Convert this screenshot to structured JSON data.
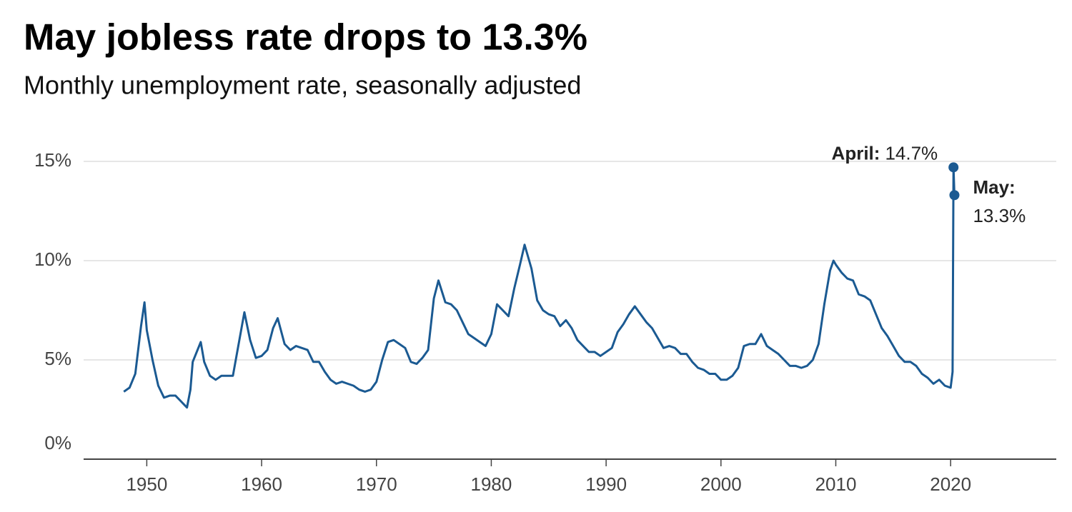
{
  "chart_data": {
    "type": "line",
    "title": "May jobless rate drops to 13.3%",
    "subtitle": "Monthly unemployment rate, seasonally adjusted",
    "color": "#1b5a92",
    "x": [
      1948.0,
      1948.5,
      1949.0,
      1949.5,
      1949.8,
      1950.0,
      1950.5,
      1951.0,
      1951.5,
      1952.0,
      1952.5,
      1953.0,
      1953.5,
      1953.8,
      1954.0,
      1954.7,
      1955.0,
      1955.5,
      1956.0,
      1956.5,
      1957.0,
      1957.5,
      1958.0,
      1958.5,
      1959.0,
      1959.5,
      1960.0,
      1960.5,
      1961.0,
      1961.4,
      1962.0,
      1962.5,
      1963.0,
      1963.5,
      1964.0,
      1964.5,
      1965.0,
      1965.5,
      1966.0,
      1966.5,
      1967.0,
      1967.5,
      1968.0,
      1968.5,
      1969.0,
      1969.5,
      1970.0,
      1970.5,
      1971.0,
      1971.5,
      1972.0,
      1972.5,
      1973.0,
      1973.5,
      1974.0,
      1974.5,
      1975.0,
      1975.4,
      1976.0,
      1976.5,
      1977.0,
      1977.5,
      1978.0,
      1978.5,
      1979.0,
      1979.5,
      1980.0,
      1980.5,
      1981.0,
      1981.5,
      1982.0,
      1982.5,
      1982.9,
      1983.5,
      1984.0,
      1984.5,
      1985.0,
      1985.5,
      1986.0,
      1986.5,
      1987.0,
      1987.5,
      1988.0,
      1988.5,
      1989.0,
      1989.5,
      1990.0,
      1990.5,
      1991.0,
      1991.5,
      1992.0,
      1992.5,
      1993.0,
      1993.5,
      1994.0,
      1994.5,
      1995.0,
      1995.5,
      1996.0,
      1996.5,
      1997.0,
      1997.5,
      1998.0,
      1998.5,
      1999.0,
      1999.5,
      2000.0,
      2000.5,
      2001.0,
      2001.5,
      2002.0,
      2002.5,
      2003.0,
      2003.5,
      2004.0,
      2004.5,
      2005.0,
      2005.5,
      2006.0,
      2006.5,
      2007.0,
      2007.5,
      2008.0,
      2008.5,
      2009.0,
      2009.5,
      2009.8,
      2010.0,
      2010.5,
      2011.0,
      2011.5,
      2012.0,
      2012.5,
      2013.0,
      2013.5,
      2014.0,
      2014.5,
      2015.0,
      2015.5,
      2016.0,
      2016.5,
      2017.0,
      2017.5,
      2018.0,
      2018.5,
      2019.0,
      2019.5,
      2020.0,
      2020.17,
      2020.25,
      2020.33
    ],
    "values": [
      3.4,
      3.6,
      4.3,
      6.7,
      7.9,
      6.5,
      5.0,
      3.7,
      3.1,
      3.2,
      3.2,
      2.9,
      2.6,
      3.5,
      4.9,
      5.9,
      4.9,
      4.2,
      4.0,
      4.2,
      4.2,
      4.2,
      5.8,
      7.4,
      6.0,
      5.1,
      5.2,
      5.5,
      6.6,
      7.1,
      5.8,
      5.5,
      5.7,
      5.6,
      5.5,
      4.9,
      4.9,
      4.4,
      4.0,
      3.8,
      3.9,
      3.8,
      3.7,
      3.5,
      3.4,
      3.5,
      3.9,
      5.0,
      5.9,
      6.0,
      5.8,
      5.6,
      4.9,
      4.8,
      5.1,
      5.5,
      8.1,
      9.0,
      7.9,
      7.8,
      7.5,
      6.9,
      6.3,
      6.1,
      5.9,
      5.7,
      6.3,
      7.8,
      7.5,
      7.2,
      8.6,
      9.8,
      10.8,
      9.6,
      8.0,
      7.5,
      7.3,
      7.2,
      6.7,
      7.0,
      6.6,
      6.0,
      5.7,
      5.4,
      5.4,
      5.2,
      5.4,
      5.6,
      6.4,
      6.8,
      7.3,
      7.7,
      7.3,
      6.9,
      6.6,
      6.1,
      5.6,
      5.7,
      5.6,
      5.3,
      5.3,
      4.9,
      4.6,
      4.5,
      4.3,
      4.3,
      4.0,
      4.0,
      4.2,
      4.6,
      5.7,
      5.8,
      5.8,
      6.3,
      5.7,
      5.5,
      5.3,
      5.0,
      4.7,
      4.7,
      4.6,
      4.7,
      5.0,
      5.8,
      7.8,
      9.5,
      10.0,
      9.8,
      9.4,
      9.1,
      9.0,
      8.3,
      8.2,
      8.0,
      7.3,
      6.6,
      6.2,
      5.7,
      5.2,
      4.9,
      4.9,
      4.7,
      4.3,
      4.1,
      3.8,
      4.0,
      3.7,
      3.6,
      4.4,
      14.7,
      13.3
    ],
    "xlim": [
      1944.5,
      2029.2
    ],
    "xticks": [
      1950,
      1960,
      1970,
      1980,
      1990,
      2000,
      2010,
      2020
    ],
    "ylim": [
      0,
      15
    ],
    "yticks": [
      {
        "value": 0,
        "label": "0%"
      },
      {
        "value": 5,
        "label": "5%"
      },
      {
        "value": 10,
        "label": "10%"
      },
      {
        "value": 15,
        "label": "15%"
      }
    ],
    "grid": true,
    "annotations": [
      {
        "label": "April:",
        "value": "14.7%"
      },
      {
        "label": "May:",
        "value": "13.3%"
      }
    ]
  }
}
